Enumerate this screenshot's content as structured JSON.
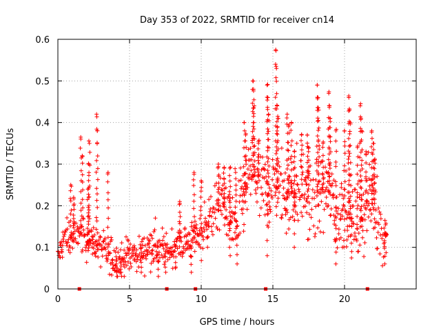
{
  "chart_data": {
    "type": "scatter",
    "title": "Day 353 of 2022, SRMTID for receiver cn14",
    "xlabel": "GPS time / hours",
    "ylabel": "SRMTID / TECUs",
    "xlim": [
      0,
      25
    ],
    "ylim": [
      0,
      0.6
    ],
    "x_ticks": [
      0,
      5,
      10,
      15,
      20
    ],
    "y_ticks": [
      0,
      0.1,
      0.2,
      0.3,
      0.4,
      0.5,
      0.6
    ],
    "grid": true,
    "marker": "+",
    "color": "#ff0000",
    "trend": [
      {
        "x": 0.0,
        "y": 0.07
      },
      {
        "x": 0.5,
        "y": 0.13
      },
      {
        "x": 1.0,
        "y": 0.12
      },
      {
        "x": 1.5,
        "y": 0.14
      },
      {
        "x": 2.0,
        "y": 0.12
      },
      {
        "x": 2.5,
        "y": 0.11
      },
      {
        "x": 3.0,
        "y": 0.1
      },
      {
        "x": 3.5,
        "y": 0.08
      },
      {
        "x": 4.0,
        "y": 0.07
      },
      {
        "x": 4.5,
        "y": 0.07
      },
      {
        "x": 5.0,
        "y": 0.08
      },
      {
        "x": 5.5,
        "y": 0.085
      },
      {
        "x": 6.0,
        "y": 0.09
      },
      {
        "x": 6.5,
        "y": 0.1
      },
      {
        "x": 7.0,
        "y": 0.1
      },
      {
        "x": 7.5,
        "y": 0.09
      },
      {
        "x": 8.0,
        "y": 0.1
      },
      {
        "x": 8.5,
        "y": 0.11
      },
      {
        "x": 9.0,
        "y": 0.11
      },
      {
        "x": 9.5,
        "y": 0.12
      },
      {
        "x": 10.0,
        "y": 0.13
      },
      {
        "x": 10.5,
        "y": 0.16
      },
      {
        "x": 11.0,
        "y": 0.19
      },
      {
        "x": 11.5,
        "y": 0.21
      },
      {
        "x": 12.0,
        "y": 0.16
      },
      {
        "x": 12.5,
        "y": 0.15
      },
      {
        "x": 13.0,
        "y": 0.22
      },
      {
        "x": 13.5,
        "y": 0.28
      },
      {
        "x": 14.0,
        "y": 0.26
      },
      {
        "x": 14.5,
        "y": 0.22
      },
      {
        "x": 15.0,
        "y": 0.25
      },
      {
        "x": 15.5,
        "y": 0.24
      },
      {
        "x": 16.0,
        "y": 0.22
      },
      {
        "x": 16.5,
        "y": 0.23
      },
      {
        "x": 17.0,
        "y": 0.25
      },
      {
        "x": 17.5,
        "y": 0.21
      },
      {
        "x": 18.0,
        "y": 0.22
      },
      {
        "x": 18.5,
        "y": 0.24
      },
      {
        "x": 19.0,
        "y": 0.23
      },
      {
        "x": 19.5,
        "y": 0.16
      },
      {
        "x": 20.0,
        "y": 0.2
      },
      {
        "x": 20.5,
        "y": 0.17
      },
      {
        "x": 21.0,
        "y": 0.15
      },
      {
        "x": 21.5,
        "y": 0.2
      },
      {
        "x": 22.0,
        "y": 0.22
      },
      {
        "x": 22.5,
        "y": 0.15
      },
      {
        "x": 22.9,
        "y": 0.13
      }
    ],
    "spikes": [
      {
        "x": 0.9,
        "y": 0.25
      },
      {
        "x": 1.1,
        "y": 0.22
      },
      {
        "x": 1.6,
        "y": 0.36
      },
      {
        "x": 1.7,
        "y": 0.32
      },
      {
        "x": 2.1,
        "y": 0.24
      },
      {
        "x": 2.15,
        "y": 0.3
      },
      {
        "x": 2.2,
        "y": 0.35
      },
      {
        "x": 2.7,
        "y": 0.42
      },
      {
        "x": 2.75,
        "y": 0.38
      },
      {
        "x": 3.5,
        "y": 0.28
      },
      {
        "x": 8.5,
        "y": 0.21
      },
      {
        "x": 9.5,
        "y": 0.28
      },
      {
        "x": 10.0,
        "y": 0.26
      },
      {
        "x": 11.2,
        "y": 0.3
      },
      {
        "x": 11.6,
        "y": 0.29
      },
      {
        "x": 12.0,
        "y": 0.29
      },
      {
        "x": 12.4,
        "y": 0.28
      },
      {
        "x": 13.0,
        "y": 0.4
      },
      {
        "x": 13.1,
        "y": 0.37
      },
      {
        "x": 13.6,
        "y": 0.5
      },
      {
        "x": 13.65,
        "y": 0.48
      },
      {
        "x": 13.7,
        "y": 0.44
      },
      {
        "x": 14.0,
        "y": 0.35
      },
      {
        "x": 14.6,
        "y": 0.49
      },
      {
        "x": 14.65,
        "y": 0.46
      },
      {
        "x": 14.7,
        "y": 0.42
      },
      {
        "x": 15.2,
        "y": 0.575
      },
      {
        "x": 15.25,
        "y": 0.53
      },
      {
        "x": 15.3,
        "y": 0.44
      },
      {
        "x": 15.35,
        "y": 0.41
      },
      {
        "x": 16.0,
        "y": 0.42
      },
      {
        "x": 16.1,
        "y": 0.39
      },
      {
        "x": 16.3,
        "y": 0.4
      },
      {
        "x": 16.5,
        "y": 0.33
      },
      {
        "x": 17.0,
        "y": 0.37
      },
      {
        "x": 17.4,
        "y": 0.37
      },
      {
        "x": 17.5,
        "y": 0.34
      },
      {
        "x": 18.1,
        "y": 0.49
      },
      {
        "x": 18.15,
        "y": 0.46
      },
      {
        "x": 18.2,
        "y": 0.43
      },
      {
        "x": 18.5,
        "y": 0.35
      },
      {
        "x": 18.9,
        "y": 0.47
      },
      {
        "x": 18.95,
        "y": 0.44
      },
      {
        "x": 19.0,
        "y": 0.41
      },
      {
        "x": 19.4,
        "y": 0.38
      },
      {
        "x": 20.0,
        "y": 0.38
      },
      {
        "x": 20.3,
        "y": 0.46
      },
      {
        "x": 20.35,
        "y": 0.43
      },
      {
        "x": 20.4,
        "y": 0.4
      },
      {
        "x": 20.9,
        "y": 0.34
      },
      {
        "x": 21.1,
        "y": 0.44
      },
      {
        "x": 21.15,
        "y": 0.41
      },
      {
        "x": 21.2,
        "y": 0.38
      },
      {
        "x": 21.5,
        "y": 0.33
      },
      {
        "x": 21.9,
        "y": 0.38
      },
      {
        "x": 22.0,
        "y": 0.35
      },
      {
        "x": 22.1,
        "y": 0.31
      },
      {
        "x": 22.9,
        "y": 0.13
      }
    ],
    "dips": [
      {
        "x": 4.1,
        "y": 0.03
      },
      {
        "x": 4.4,
        "y": 0.04
      },
      {
        "x": 5.8,
        "y": 0.04
      },
      {
        "x": 7.0,
        "y": 0.03
      },
      {
        "x": 7.5,
        "y": 0.04
      },
      {
        "x": 8.2,
        "y": 0.05
      },
      {
        "x": 9.3,
        "y": 0.04
      },
      {
        "x": 12.0,
        "y": 0.08
      },
      {
        "x": 12.5,
        "y": 0.06
      },
      {
        "x": 14.6,
        "y": 0.08
      },
      {
        "x": 16.5,
        "y": 0.1
      },
      {
        "x": 19.4,
        "y": 0.06
      },
      {
        "x": 20.5,
        "y": 0.09
      },
      {
        "x": 22.8,
        "y": 0.06
      }
    ],
    "baseline_markers_x": [
      1.5,
      7.6,
      9.6,
      14.5,
      21.6
    ]
  }
}
